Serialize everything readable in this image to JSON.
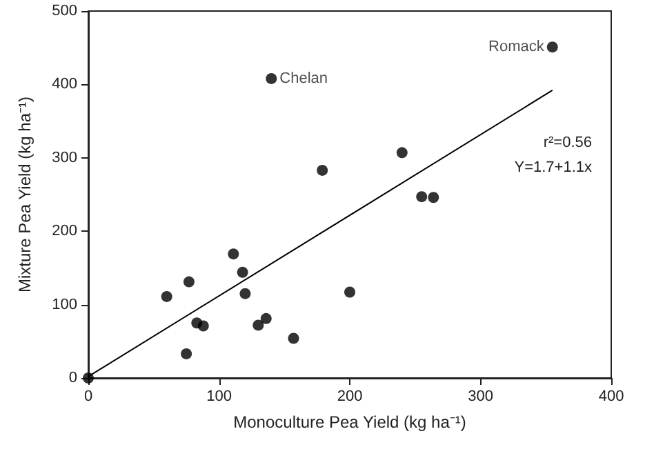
{
  "chart_data": {
    "type": "scatter",
    "xlabel": "Monoculture Pea Yield (kg ha⁻¹)",
    "ylabel": "Mixture Pea Yield (kg ha⁻¹)",
    "x": [
      0,
      60,
      77,
      75,
      83,
      88,
      111,
      118,
      120,
      130,
      136,
      157,
      200,
      140,
      355,
      179,
      240,
      255,
      264
    ],
    "series": [
      {
        "color": "#000000",
        "marker": "circle",
        "values": [
          0,
          111,
          131,
          33,
          75,
          71,
          169,
          144,
          115,
          72,
          81,
          54,
          117,
          408,
          451,
          283,
          307,
          247,
          246
        ]
      },
      {
        "type": "line",
        "color": "#000000",
        "x": [
          0,
          355
        ],
        "values": [
          2,
          392
        ]
      }
    ],
    "xlim": [
      0,
      400
    ],
    "xticks": [
      0,
      100,
      200,
      300,
      400
    ],
    "ylim": [
      0,
      500
    ],
    "yticks": [
      0,
      100,
      200,
      300,
      400,
      500
    ],
    "grid": false,
    "line_style": "solid",
    "annotations": [
      {
        "text": "Chelan",
        "x": 140,
        "y": 408
      },
      {
        "text": "Romack",
        "x": 355,
        "y": 451
      },
      "r²=0.56",
      "Y=1.7+1.1x"
    ]
  }
}
